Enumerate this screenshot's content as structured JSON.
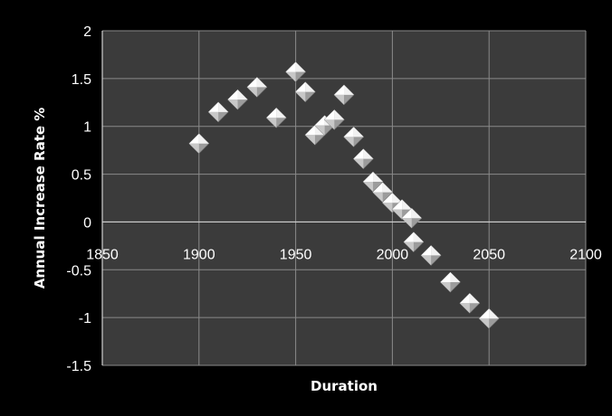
{
  "chart_data": {
    "type": "scatter",
    "title": "",
    "xlabel": "Duration",
    "ylabel": "Annual Increase Rate  %",
    "xlim": [
      1850,
      2100
    ],
    "ylim": [
      -1.5,
      2
    ],
    "x_ticks": [
      1850,
      1900,
      1950,
      2000,
      2050,
      2100
    ],
    "y_ticks": [
      -1.5,
      -1,
      -0.5,
      0,
      0.5,
      1,
      1.5,
      2
    ],
    "x_tick_labels": [
      "1850",
      "1900",
      "1950",
      "2000",
      "2050",
      "2100"
    ],
    "y_tick_labels": [
      "-1.5",
      "-1",
      "-0.5",
      "0",
      "0.5",
      "1",
      "1.5",
      "2"
    ],
    "grid": true,
    "legend": "none",
    "marker": "diamond",
    "colors": {
      "background": "#000000",
      "plot_area": "#3b3b3b",
      "grid": "#8a8a8a",
      "marker_fill": "#f2f2f2",
      "marker_shade": "#9c9c9c",
      "text": "#ffffff"
    },
    "series": [
      {
        "points": [
          {
            "x": 1900,
            "y": 0.82
          },
          {
            "x": 1910,
            "y": 1.15
          },
          {
            "x": 1920,
            "y": 1.28
          },
          {
            "x": 1930,
            "y": 1.41
          },
          {
            "x": 1940,
            "y": 1.09
          },
          {
            "x": 1950,
            "y": 1.57
          },
          {
            "x": 1955,
            "y": 1.36
          },
          {
            "x": 1960,
            "y": 0.91
          },
          {
            "x": 1965,
            "y": 1.01
          },
          {
            "x": 1970,
            "y": 1.07
          },
          {
            "x": 1975,
            "y": 1.33
          },
          {
            "x": 1980,
            "y": 0.89
          },
          {
            "x": 1985,
            "y": 0.66
          },
          {
            "x": 1990,
            "y": 0.42
          },
          {
            "x": 1995,
            "y": 0.31
          },
          {
            "x": 2000,
            "y": 0.2
          },
          {
            "x": 2005,
            "y": 0.13
          },
          {
            "x": 2010,
            "y": 0.04
          },
          {
            "x": 2011,
            "y": -0.21
          },
          {
            "x": 2020,
            "y": -0.35
          },
          {
            "x": 2030,
            "y": -0.63
          },
          {
            "x": 2040,
            "y": -0.85
          },
          {
            "x": 2050,
            "y": -1.01
          }
        ]
      }
    ]
  }
}
